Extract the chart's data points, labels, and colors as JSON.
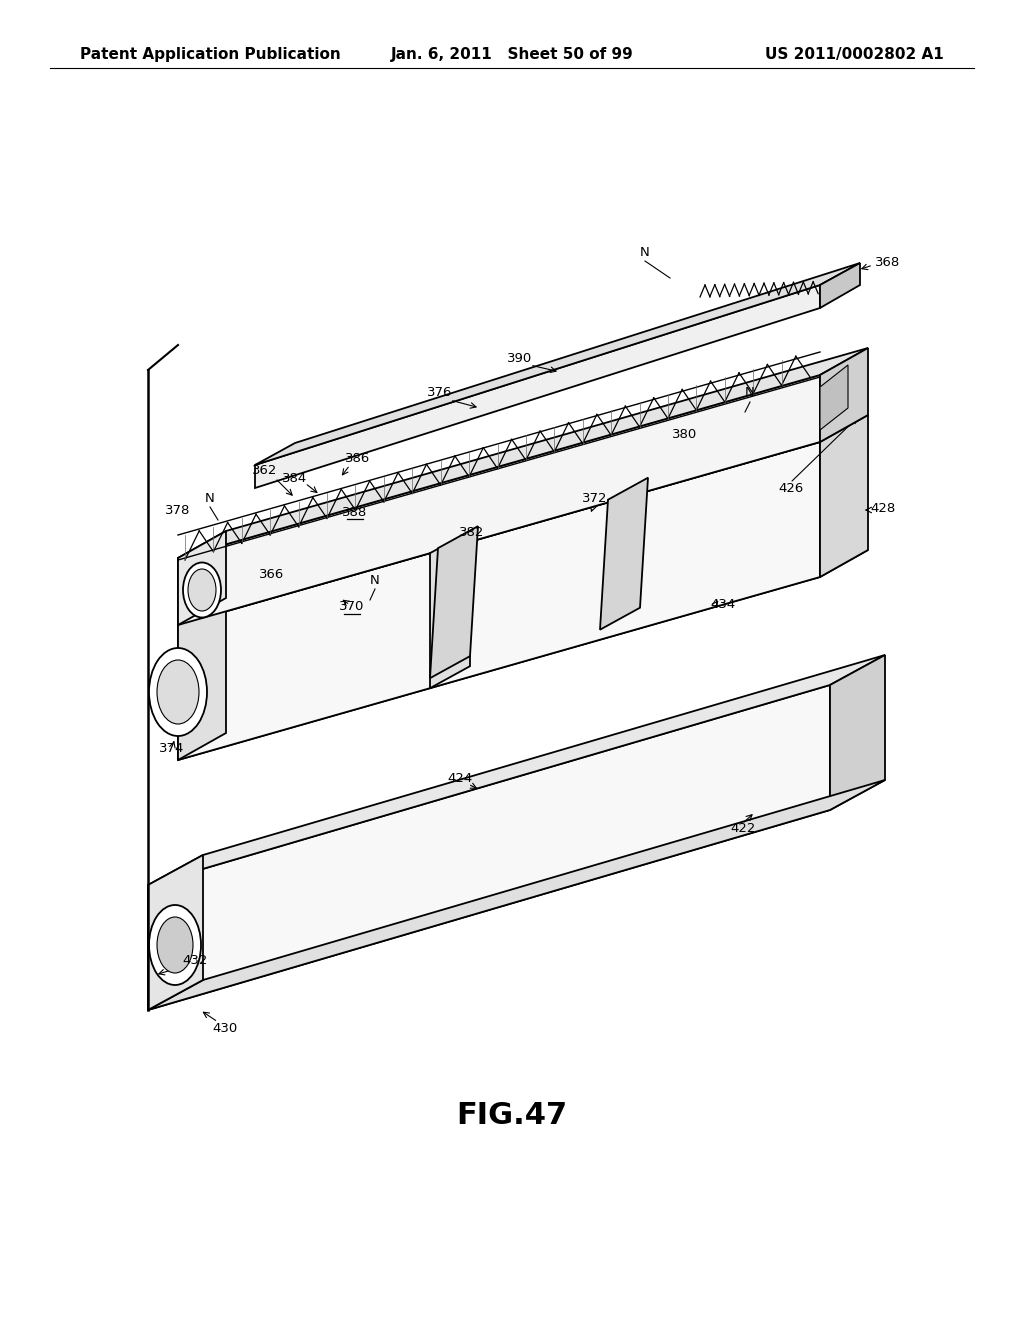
{
  "background_color": "#ffffff",
  "header_left": "Patent Application Publication",
  "header_center": "Jan. 6, 2011   Sheet 50 of 99",
  "header_right": "US 2011/0002802 A1",
  "figure_label": "FIG.47",
  "figure_label_fontsize": 22,
  "header_fontsize": 11,
  "lw": 1.3
}
